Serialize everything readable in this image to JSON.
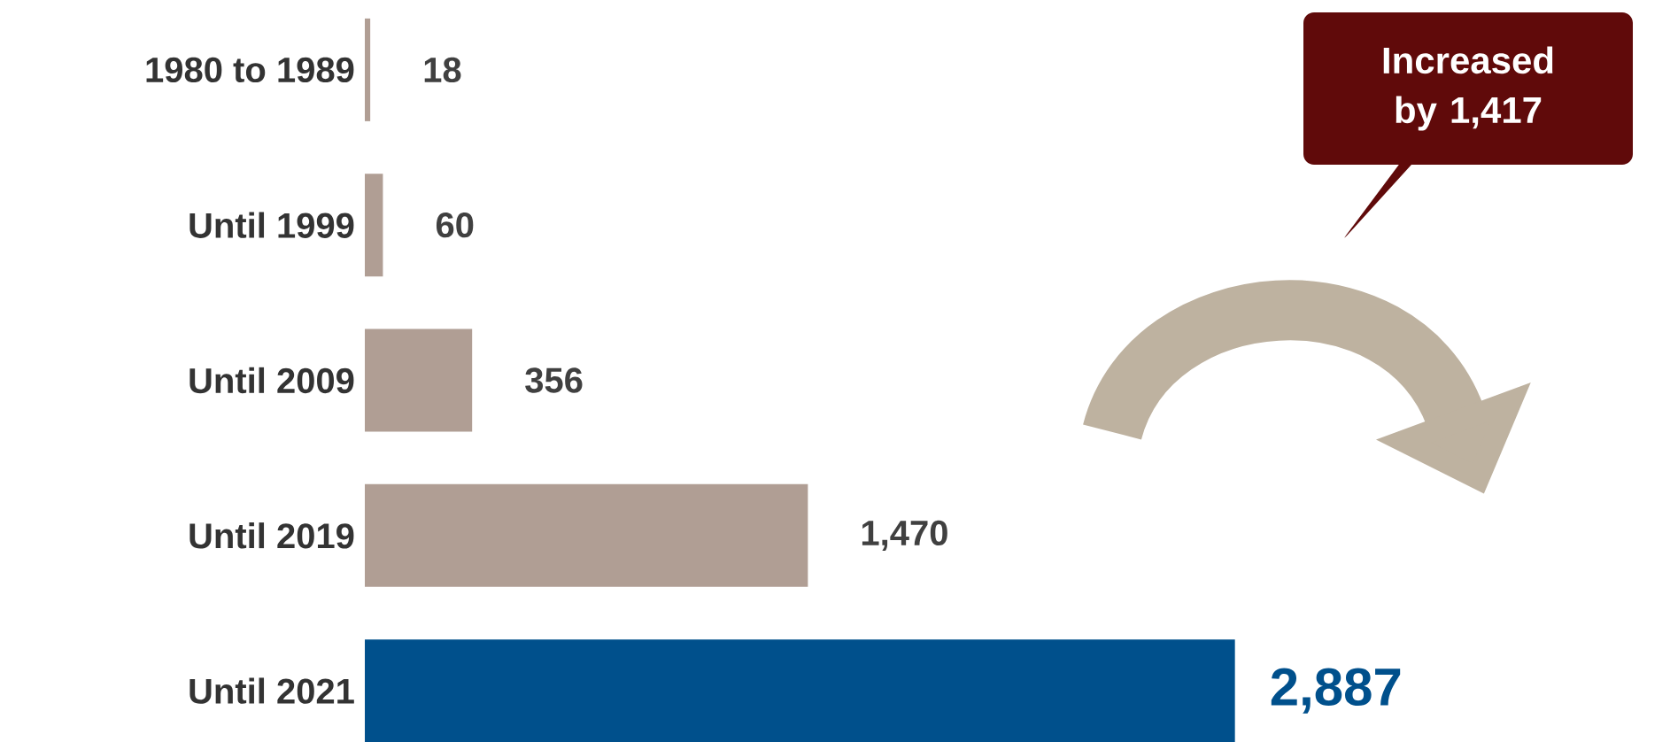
{
  "chart_data": {
    "type": "bar",
    "orientation": "horizontal",
    "categories": [
      "1980 to 1989",
      "Until 1999",
      "Until 2009",
      "Until 2019",
      "Until 2021"
    ],
    "values": [
      18,
      60,
      356,
      1470,
      2887
    ],
    "colors": [
      "#b09e94",
      "#b09e94",
      "#b09e94",
      "#b09e94",
      "#00508c"
    ],
    "value_labels": [
      "18",
      "60",
      "356",
      "1,470",
      "2,887"
    ],
    "annotations": [
      "Increased by 1,417"
    ]
  }
}
